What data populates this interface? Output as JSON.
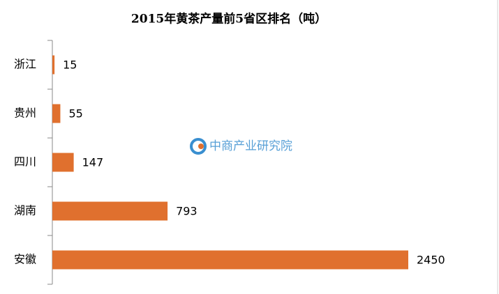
{
  "chart_data": {
    "type": "bar",
    "orientation": "horizontal",
    "title": "2015年黄茶产量前5省区排名（吨）",
    "watermark": "中商产业研究院",
    "categories": [
      "浙江",
      "贵州",
      "四川",
      "湖南",
      "安徽"
    ],
    "values": [
      15,
      55,
      147,
      793,
      2450
    ],
    "color": "#e0702e"
  }
}
